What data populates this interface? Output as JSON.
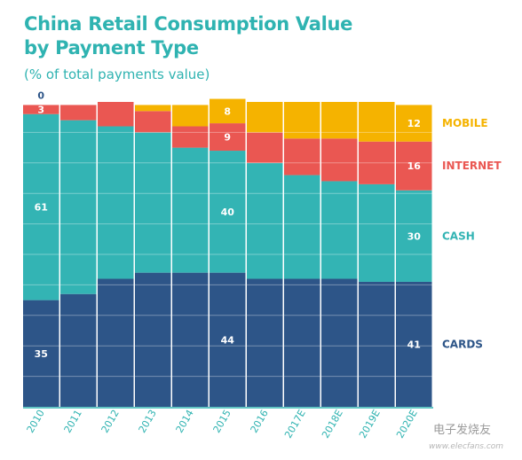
{
  "title_line1": "China Retail Consumption Value",
  "title_line2": "by Payment Type",
  "subtitle": "(% of total payments value)",
  "watermark": "电子发烧友",
  "watermark_url": "www.elecfans.com",
  "chart_data": {
    "type": "bar",
    "stacked": true,
    "categories": [
      "2010",
      "2011",
      "2012",
      "2013",
      "2014",
      "2015",
      "2016",
      "2017E",
      "2018E",
      "2019E",
      "2020E"
    ],
    "series": [
      {
        "name": "CARDS",
        "color": "#2d5588",
        "values": [
          35,
          37,
          42,
          44,
          44,
          44,
          42,
          42,
          42,
          41,
          41
        ],
        "labels": {
          "0": "35",
          "5": "44",
          "10": "41"
        }
      },
      {
        "name": "CASH",
        "color": "#33b4b4",
        "values": [
          61,
          57,
          50,
          46,
          41,
          40,
          38,
          34,
          32,
          32,
          30
        ],
        "labels": {
          "0": "61",
          "5": "40",
          "10": "30"
        }
      },
      {
        "name": "INTERNET",
        "color": "#ea5752",
        "values": [
          3,
          5,
          8,
          7,
          7,
          9,
          10,
          12,
          14,
          14,
          16
        ],
        "labels": {
          "0": "3",
          "5": "9",
          "10": "16"
        }
      },
      {
        "name": "MOBILE",
        "color": "#f5b300",
        "values": [
          0,
          0,
          0,
          2,
          7,
          8,
          10,
          12,
          12,
          13,
          12
        ],
        "labels": {
          "0": "0",
          "5": "8",
          "10": "12"
        }
      }
    ],
    "ylim": [
      0,
      100
    ],
    "grid": true,
    "legend": "right"
  }
}
